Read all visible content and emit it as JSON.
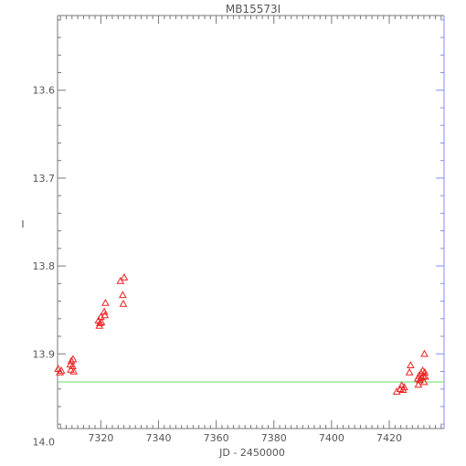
{
  "chart_data": {
    "type": "scatter",
    "title": "MB15573I",
    "xlabel": "JD - 2450000",
    "ylabel": "I",
    "xlim": [
      7305,
      7439
    ],
    "ylim": [
      13.985,
      13.515
    ],
    "y_inverted": true,
    "x_ticks": [
      7320,
      7340,
      7360,
      7380,
      7400,
      7420
    ],
    "x_ticklabels": [
      "7320",
      "7340",
      "7360",
      "7380",
      "7400",
      "7420"
    ],
    "y_ticks": [
      13.6,
      13.7,
      13.8,
      13.9,
      14.0
    ],
    "y_ticklabels": [
      "13.6",
      "13.7",
      "13.8",
      "13.9",
      "14.0"
    ],
    "reference_line": {
      "y": 13.932,
      "color": "#66dd66"
    },
    "grid": false,
    "marker": "triangle",
    "colors": {
      "points": "#ee2222",
      "axes": "#777777",
      "right_axis": "#8888ff"
    },
    "series": [
      {
        "points": [
          [
            7305.2,
            13.917
          ],
          [
            7305.8,
            13.921
          ],
          [
            7306.3,
            13.919
          ],
          [
            7309.4,
            13.912
          ],
          [
            7309.6,
            13.918
          ],
          [
            7309.8,
            13.908
          ],
          [
            7310.2,
            13.914
          ],
          [
            7310.4,
            13.906
          ],
          [
            7310.6,
            13.92
          ],
          [
            7319.2,
            13.862
          ],
          [
            7319.5,
            13.868
          ],
          [
            7319.7,
            13.865
          ],
          [
            7320.0,
            13.858
          ],
          [
            7320.2,
            13.864
          ],
          [
            7321.2,
            13.852
          ],
          [
            7321.4,
            13.856
          ],
          [
            7321.6,
            13.842
          ],
          [
            7326.8,
            13.817
          ],
          [
            7327.6,
            13.833
          ],
          [
            7327.8,
            13.843
          ],
          [
            7328.1,
            13.813
          ],
          [
            7422.6,
            13.943
          ],
          [
            7423.8,
            13.94
          ],
          [
            7424.3,
            13.936
          ],
          [
            7424.8,
            13.941
          ],
          [
            7425.2,
            13.938
          ],
          [
            7427.0,
            13.921
          ],
          [
            7427.4,
            13.913
          ],
          [
            7429.9,
            13.928
          ],
          [
            7430.1,
            13.935
          ],
          [
            7430.3,
            13.925
          ],
          [
            7430.6,
            13.93
          ],
          [
            7431.0,
            13.922
          ],
          [
            7431.3,
            13.927
          ],
          [
            7431.6,
            13.919
          ],
          [
            7431.8,
            13.925
          ],
          [
            7432.1,
            13.932
          ],
          [
            7432.3,
            13.921
          ],
          [
            7432.5,
            13.926
          ],
          [
            7432.2,
            13.9
          ]
        ]
      }
    ]
  }
}
